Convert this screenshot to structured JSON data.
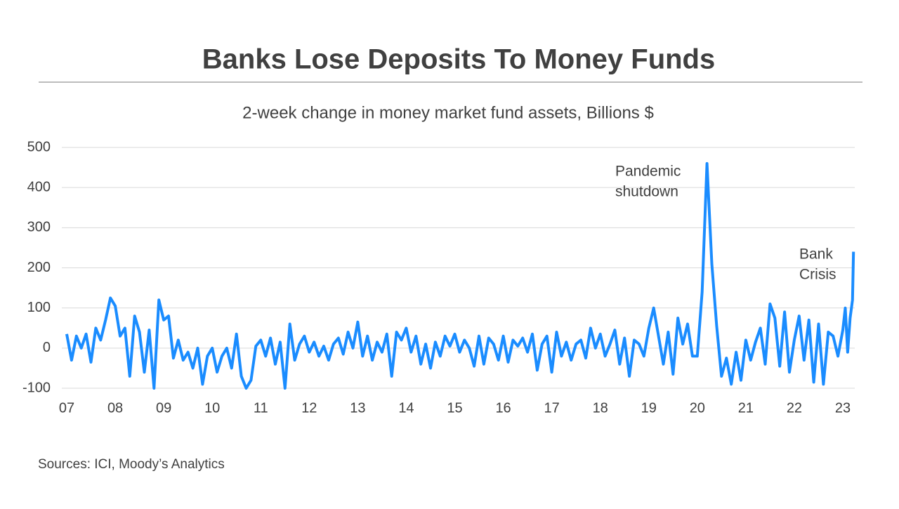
{
  "chart_data": {
    "type": "line",
    "title": "Banks Lose Deposits To Money Funds",
    "subtitle": "2-week change in money market fund assets, Billions $",
    "source": "Sources: ICI, Moody’s Analytics",
    "annotations": [
      {
        "lines": [
          "Pandemic",
          "shutdown"
        ]
      },
      {
        "lines": [
          "Bank",
          "Crisis"
        ]
      }
    ],
    "xlim": [
      7,
      23.25
    ],
    "xticks": [
      {
        "value": 7,
        "label": "07"
      },
      {
        "value": 8,
        "label": "08"
      },
      {
        "value": 9,
        "label": "09"
      },
      {
        "value": 10,
        "label": "10"
      },
      {
        "value": 11,
        "label": "11"
      },
      {
        "value": 12,
        "label": "12"
      },
      {
        "value": 13,
        "label": "13"
      },
      {
        "value": 14,
        "label": "14"
      },
      {
        "value": 15,
        "label": "15"
      },
      {
        "value": 16,
        "label": "16"
      },
      {
        "value": 17,
        "label": "17"
      },
      {
        "value": 18,
        "label": "18"
      },
      {
        "value": 19,
        "label": "19"
      },
      {
        "value": 20,
        "label": "20"
      },
      {
        "value": 21,
        "label": "21"
      },
      {
        "value": 22,
        "label": "22"
      },
      {
        "value": 23,
        "label": "23"
      }
    ],
    "ylim": [
      -100,
      500
    ],
    "yticks": [
      -100,
      0,
      100,
      200,
      300,
      400,
      500
    ],
    "grid": true,
    "x": [
      7,
      7.1,
      7.2,
      7.3,
      7.4,
      7.5,
      7.6,
      7.7,
      7.8,
      7.9,
      8,
      8.1,
      8.2,
      8.3,
      8.4,
      8.5,
      8.6,
      8.7,
      8.8,
      8.9,
      9,
      9.1,
      9.2,
      9.3,
      9.4,
      9.5,
      9.6,
      9.7,
      9.8,
      9.9,
      10,
      10.1,
      10.2,
      10.3,
      10.4,
      10.5,
      10.6,
      10.7,
      10.8,
      10.9,
      11,
      11.1,
      11.2,
      11.3,
      11.4,
      11.5,
      11.6,
      11.7,
      11.8,
      11.9,
      12,
      12.1,
      12.2,
      12.3,
      12.4,
      12.5,
      12.6,
      12.7,
      12.8,
      12.9,
      13,
      13.1,
      13.2,
      13.3,
      13.4,
      13.5,
      13.6,
      13.7,
      13.8,
      13.9,
      14,
      14.1,
      14.2,
      14.3,
      14.4,
      14.5,
      14.6,
      14.7,
      14.8,
      14.9,
      15,
      15.1,
      15.2,
      15.3,
      15.4,
      15.5,
      15.6,
      15.7,
      15.8,
      15.9,
      16,
      16.1,
      16.2,
      16.3,
      16.4,
      16.5,
      16.6,
      16.7,
      16.8,
      16.9,
      17,
      17.1,
      17.2,
      17.3,
      17.4,
      17.5,
      17.6,
      17.7,
      17.8,
      17.9,
      18,
      18.1,
      18.2,
      18.3,
      18.4,
      18.5,
      18.6,
      18.7,
      18.8,
      18.9,
      19,
      19.1,
      19.2,
      19.3,
      19.4,
      19.5,
      19.6,
      19.7,
      19.8,
      19.9,
      20,
      20.1,
      20.2,
      20.3,
      20.4,
      20.5,
      20.6,
      20.7,
      20.8,
      20.9,
      21,
      21.1,
      21.2,
      21.3,
      21.4,
      21.5,
      21.6,
      21.7,
      21.8,
      21.9,
      22,
      22.1,
      22.2,
      22.3,
      22.4,
      22.5,
      22.6,
      22.7,
      22.8,
      22.9,
      23,
      23.05,
      23.1,
      23.15,
      23.2,
      23.22
    ],
    "series": [
      {
        "name": "2-week change",
        "color": "#1a8cff",
        "values": [
          35,
          -30,
          30,
          0,
          35,
          -35,
          50,
          20,
          70,
          125,
          105,
          30,
          50,
          -70,
          80,
          40,
          -60,
          45,
          -100,
          120,
          70,
          80,
          -25,
          20,
          -30,
          -10,
          -50,
          0,
          -90,
          -20,
          0,
          -60,
          -20,
          0,
          -50,
          35,
          -70,
          -100,
          -80,
          5,
          20,
          -20,
          25,
          -40,
          15,
          -100,
          60,
          -30,
          10,
          30,
          -10,
          15,
          -20,
          5,
          -30,
          10,
          25,
          -15,
          40,
          0,
          65,
          -20,
          30,
          -30,
          15,
          -10,
          35,
          -70,
          40,
          20,
          50,
          -10,
          30,
          -40,
          10,
          -50,
          15,
          -20,
          30,
          5,
          35,
          -10,
          20,
          0,
          -45,
          30,
          -40,
          25,
          10,
          -30,
          30,
          -35,
          20,
          5,
          25,
          -10,
          35,
          -55,
          10,
          30,
          -60,
          40,
          -20,
          15,
          -30,
          10,
          20,
          -25,
          50,
          0,
          35,
          -20,
          10,
          45,
          -40,
          25,
          -70,
          20,
          10,
          -20,
          50,
          100,
          30,
          -40,
          40,
          -65,
          75,
          10,
          60,
          -20,
          -20,
          140,
          460,
          210,
          55,
          -70,
          -25,
          -90,
          -10,
          -80,
          20,
          -30,
          15,
          50,
          -40,
          110,
          75,
          -45,
          90,
          -60,
          20,
          80,
          -30,
          70,
          -85,
          60,
          -90,
          40,
          30,
          -20,
          45,
          100,
          -10,
          75,
          120,
          240
        ]
      }
    ]
  }
}
